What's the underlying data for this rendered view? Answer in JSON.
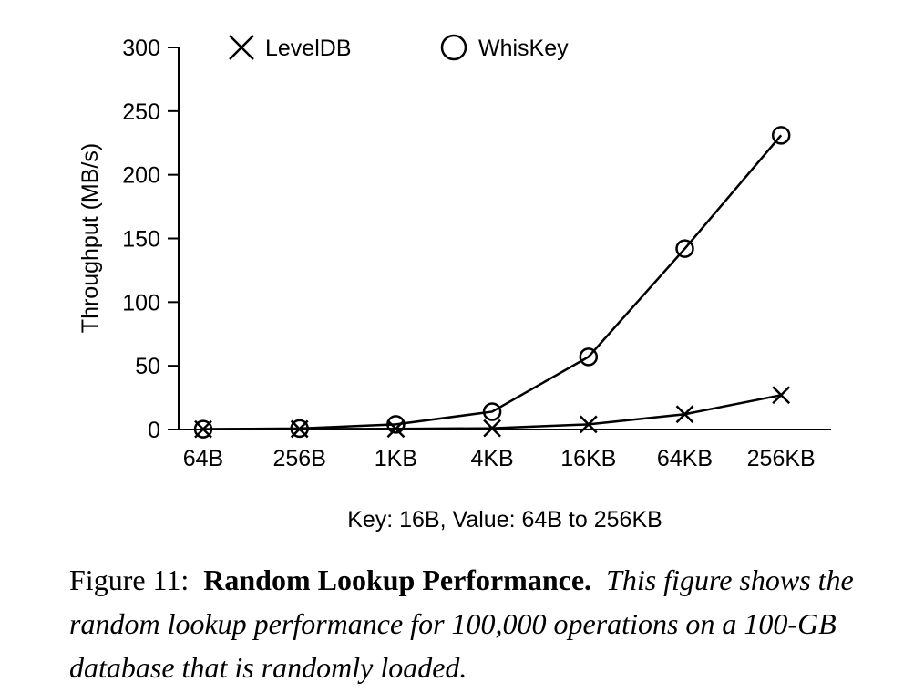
{
  "chart_data": {
    "type": "line",
    "categories": [
      "64B",
      "256B",
      "1KB",
      "4KB",
      "16KB",
      "64KB",
      "256KB"
    ],
    "series": [
      {
        "name": "LevelDB",
        "marker": "cross",
        "values": [
          0.3,
          0.4,
          0.5,
          1,
          4,
          12,
          27
        ]
      },
      {
        "name": "WhisKey",
        "marker": "circle",
        "values": [
          0.3,
          0.8,
          4,
          14,
          57,
          142,
          231
        ]
      }
    ],
    "xlabel": "Key: 16B, Value: 64B to 256KB",
    "ylabel": "Throughput (MB/s)",
    "ylim": [
      0,
      300
    ],
    "yticks": [
      0,
      50,
      100,
      150,
      200,
      250,
      300
    ],
    "ytick_labels": [
      "0",
      "50",
      "100",
      "150",
      "200",
      "250",
      "300"
    ],
    "grid": false,
    "legend_placement": "top"
  },
  "caption": {
    "figure_number": "Figure 11:",
    "title": "Random Lookup Performance.",
    "text": "This figure shows the random lookup performance for 100,000 operations on a 100-GB database that is randomly loaded."
  },
  "colors": {
    "line": "#000000",
    "background": "#ffffff"
  }
}
